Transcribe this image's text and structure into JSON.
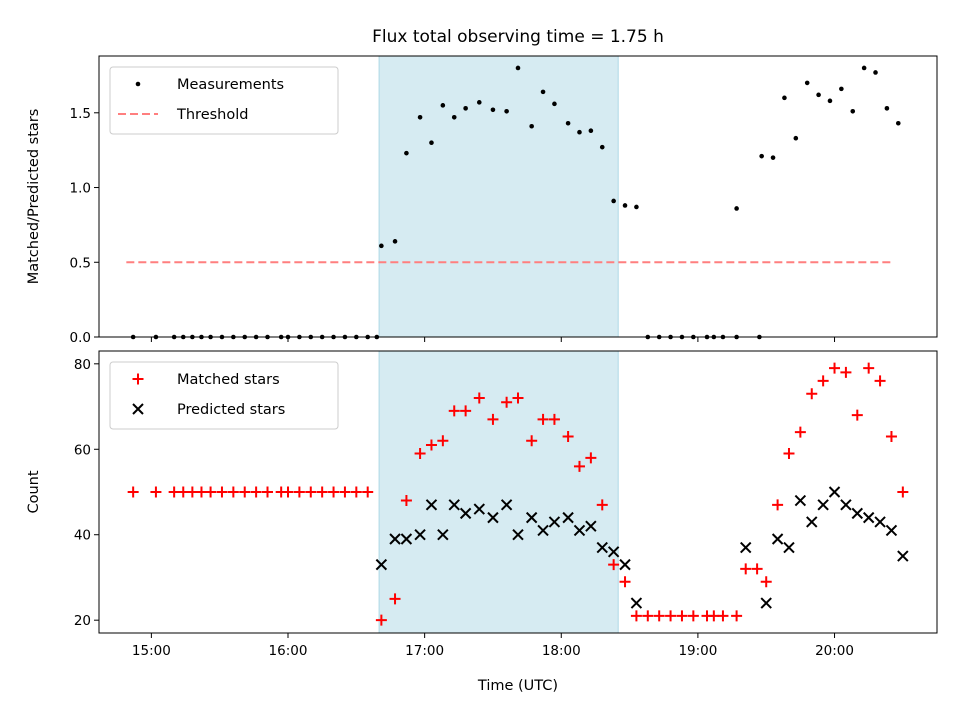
{
  "chart_data": [
    {
      "type": "scatter",
      "title": "Flux total observing time = 1.75 h",
      "ylabel": "Matched/Predicted stars",
      "xlabel": "",
      "ylim": [
        0,
        1.88
      ],
      "xlim": [
        "14:37",
        "20:45"
      ],
      "yticks": [
        0.0,
        0.5,
        1.0,
        1.5
      ],
      "ytick_labels": [
        "0.0",
        "0.5",
        "1.0",
        "1.5"
      ],
      "shaded_region": {
        "start": "16:40",
        "end": "18:25",
        "color": "#add8e6"
      },
      "legend": {
        "location": "upper-left",
        "entries": [
          "Measurements",
          "Threshold"
        ]
      },
      "series": [
        {
          "name": "Measurements",
          "marker": "dot",
          "color": "#000000",
          "points": [
            [
              "14:52",
              0
            ],
            [
              "15:02",
              0
            ],
            [
              "15:10",
              0
            ],
            [
              "15:14",
              0
            ],
            [
              "15:18",
              0
            ],
            [
              "15:22",
              0
            ],
            [
              "15:26",
              0
            ],
            [
              "15:31",
              0
            ],
            [
              "15:36",
              0
            ],
            [
              "15:41",
              0
            ],
            [
              "15:46",
              0
            ],
            [
              "15:51",
              0
            ],
            [
              "15:57",
              0
            ],
            [
              "16:00",
              0
            ],
            [
              "16:05",
              0
            ],
            [
              "16:10",
              0
            ],
            [
              "16:15",
              0
            ],
            [
              "16:20",
              0
            ],
            [
              "16:25",
              0
            ],
            [
              "16:30",
              0
            ],
            [
              "16:35",
              0
            ],
            [
              "16:39",
              0
            ],
            [
              "16:41",
              0.61
            ],
            [
              "16:47",
              0.64
            ],
            [
              "16:52",
              1.23
            ],
            [
              "16:58",
              1.47
            ],
            [
              "17:03",
              1.3
            ],
            [
              "17:08",
              1.55
            ],
            [
              "17:13",
              1.47
            ],
            [
              "17:18",
              1.53
            ],
            [
              "17:24",
              1.57
            ],
            [
              "17:30",
              1.52
            ],
            [
              "17:36",
              1.51
            ],
            [
              "17:41",
              1.8
            ],
            [
              "17:47",
              1.41
            ],
            [
              "17:52",
              1.64
            ],
            [
              "17:57",
              1.56
            ],
            [
              "18:03",
              1.43
            ],
            [
              "18:08",
              1.37
            ],
            [
              "18:13",
              1.38
            ],
            [
              "18:18",
              1.27
            ],
            [
              "18:23",
              0.91
            ],
            [
              "18:28",
              0.88
            ],
            [
              "18:33",
              0.87
            ],
            [
              "18:38",
              0
            ],
            [
              "18:43",
              0
            ],
            [
              "18:48",
              0
            ],
            [
              "18:53",
              0
            ],
            [
              "18:58",
              0
            ],
            [
              "19:04",
              0
            ],
            [
              "19:07",
              0
            ],
            [
              "19:11",
              0
            ],
            [
              "19:17",
              0
            ],
            [
              "19:27",
              0
            ],
            [
              "19:17",
              0.86
            ],
            [
              "19:28",
              1.21
            ],
            [
              "19:33",
              1.2
            ],
            [
              "19:38",
              1.6
            ],
            [
              "19:43",
              1.33
            ],
            [
              "19:48",
              1.7
            ],
            [
              "19:53",
              1.62
            ],
            [
              "19:58",
              1.58
            ],
            [
              "20:03",
              1.66
            ],
            [
              "20:08",
              1.51
            ],
            [
              "20:13",
              1.8
            ],
            [
              "20:18",
              1.77
            ],
            [
              "20:23",
              1.53
            ],
            [
              "20:28",
              1.43
            ]
          ]
        },
        {
          "name": "Threshold",
          "line_style": "dashed",
          "color": "#ff7f7f",
          "points": [
            [
              "14:49",
              0.5
            ],
            [
              "20:25",
              0.5
            ]
          ]
        }
      ]
    },
    {
      "type": "scatter",
      "title": "",
      "xlabel": "Time (UTC)",
      "ylabel": "Count",
      "ylim": [
        17,
        83
      ],
      "xlim": [
        "14:37",
        "20:45"
      ],
      "xticks": [
        "15:00",
        "16:00",
        "17:00",
        "18:00",
        "19:00",
        "20:00"
      ],
      "yticks": [
        20,
        40,
        60,
        80
      ],
      "ytick_labels": [
        "20",
        "40",
        "60",
        "80"
      ],
      "shaded_region": {
        "start": "16:40",
        "end": "18:25",
        "color": "#add8e6"
      },
      "legend": {
        "location": "upper-left",
        "entries": [
          "Matched stars",
          "Predicted stars"
        ]
      },
      "series": [
        {
          "name": "Matched stars",
          "marker": "plus",
          "color": "#ff0000",
          "points": [
            [
              "14:52",
              50
            ],
            [
              "15:02",
              50
            ],
            [
              "15:10",
              50
            ],
            [
              "15:14",
              50
            ],
            [
              "15:18",
              50
            ],
            [
              "15:22",
              50
            ],
            [
              "15:26",
              50
            ],
            [
              "15:31",
              50
            ],
            [
              "15:36",
              50
            ],
            [
              "15:41",
              50
            ],
            [
              "15:46",
              50
            ],
            [
              "15:51",
              50
            ],
            [
              "15:57",
              50
            ],
            [
              "16:00",
              50
            ],
            [
              "16:05",
              50
            ],
            [
              "16:10",
              50
            ],
            [
              "16:15",
              50
            ],
            [
              "16:20",
              50
            ],
            [
              "16:25",
              50
            ],
            [
              "16:30",
              50
            ],
            [
              "16:35",
              50
            ],
            [
              "16:41",
              20
            ],
            [
              "16:47",
              25
            ],
            [
              "16:52",
              48
            ],
            [
              "16:58",
              59
            ],
            [
              "17:03",
              61
            ],
            [
              "17:08",
              62
            ],
            [
              "17:13",
              69
            ],
            [
              "17:18",
              69
            ],
            [
              "17:24",
              72
            ],
            [
              "17:30",
              67
            ],
            [
              "17:36",
              71
            ],
            [
              "17:41",
              72
            ],
            [
              "17:47",
              62
            ],
            [
              "17:52",
              67
            ],
            [
              "17:57",
              67
            ],
            [
              "18:03",
              63
            ],
            [
              "18:08",
              56
            ],
            [
              "18:13",
              58
            ],
            [
              "18:18",
              47
            ],
            [
              "18:23",
              33
            ],
            [
              "18:28",
              29
            ],
            [
              "18:33",
              21
            ],
            [
              "18:38",
              21
            ],
            [
              "18:43",
              21
            ],
            [
              "18:48",
              21
            ],
            [
              "18:53",
              21
            ],
            [
              "18:58",
              21
            ],
            [
              "19:04",
              21
            ],
            [
              "19:07",
              21
            ],
            [
              "19:11",
              21
            ],
            [
              "19:17",
              21
            ],
            [
              "19:21",
              32
            ],
            [
              "19:26",
              32
            ],
            [
              "19:30",
              29
            ],
            [
              "19:35",
              47
            ],
            [
              "19:40",
              59
            ],
            [
              "19:45",
              64
            ],
            [
              "19:50",
              73
            ],
            [
              "19:55",
              76
            ],
            [
              "20:00",
              79
            ],
            [
              "20:05",
              78
            ],
            [
              "20:10",
              68
            ],
            [
              "20:15",
              79
            ],
            [
              "20:20",
              76
            ],
            [
              "20:25",
              63
            ],
            [
              "20:30",
              50
            ]
          ]
        },
        {
          "name": "Predicted stars",
          "marker": "x",
          "color": "#000000",
          "points": [
            [
              "16:41",
              33
            ],
            [
              "16:47",
              39
            ],
            [
              "16:52",
              39
            ],
            [
              "16:58",
              40
            ],
            [
              "17:03",
              47
            ],
            [
              "17:08",
              40
            ],
            [
              "17:13",
              47
            ],
            [
              "17:18",
              45
            ],
            [
              "17:24",
              46
            ],
            [
              "17:30",
              44
            ],
            [
              "17:36",
              47
            ],
            [
              "17:41",
              40
            ],
            [
              "17:47",
              44
            ],
            [
              "17:52",
              41
            ],
            [
              "17:57",
              43
            ],
            [
              "18:03",
              44
            ],
            [
              "18:08",
              41
            ],
            [
              "18:13",
              42
            ],
            [
              "18:18",
              37
            ],
            [
              "18:23",
              36
            ],
            [
              "18:28",
              33
            ],
            [
              "18:33",
              24
            ],
            [
              "19:21",
              37
            ],
            [
              "19:30",
              24
            ],
            [
              "19:35",
              39
            ],
            [
              "19:40",
              37
            ],
            [
              "19:45",
              48
            ],
            [
              "19:50",
              43
            ],
            [
              "19:55",
              47
            ],
            [
              "20:00",
              50
            ],
            [
              "20:05",
              47
            ],
            [
              "20:10",
              45
            ],
            [
              "20:15",
              44
            ],
            [
              "20:20",
              43
            ],
            [
              "20:25",
              41
            ],
            [
              "20:30",
              35
            ]
          ]
        }
      ]
    }
  ]
}
